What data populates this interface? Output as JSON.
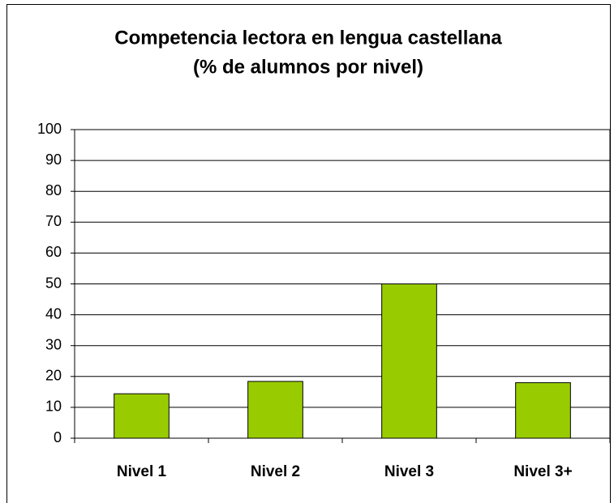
{
  "chart_data": {
    "type": "bar",
    "title": "Competencia lectora en lengua castellana",
    "subtitle": "(% de alumnos por nivel)",
    "categories": [
      "Nivel 1",
      "Nivel 2",
      "Nivel 3",
      "Nivel 3+"
    ],
    "values": [
      14.4,
      18.4,
      50,
      18
    ],
    "color": "#99cc00",
    "ylim": [
      0,
      100
    ],
    "yticks": [
      0,
      10,
      20,
      30,
      40,
      50,
      60,
      70,
      80,
      90,
      100
    ],
    "grid": true
  }
}
